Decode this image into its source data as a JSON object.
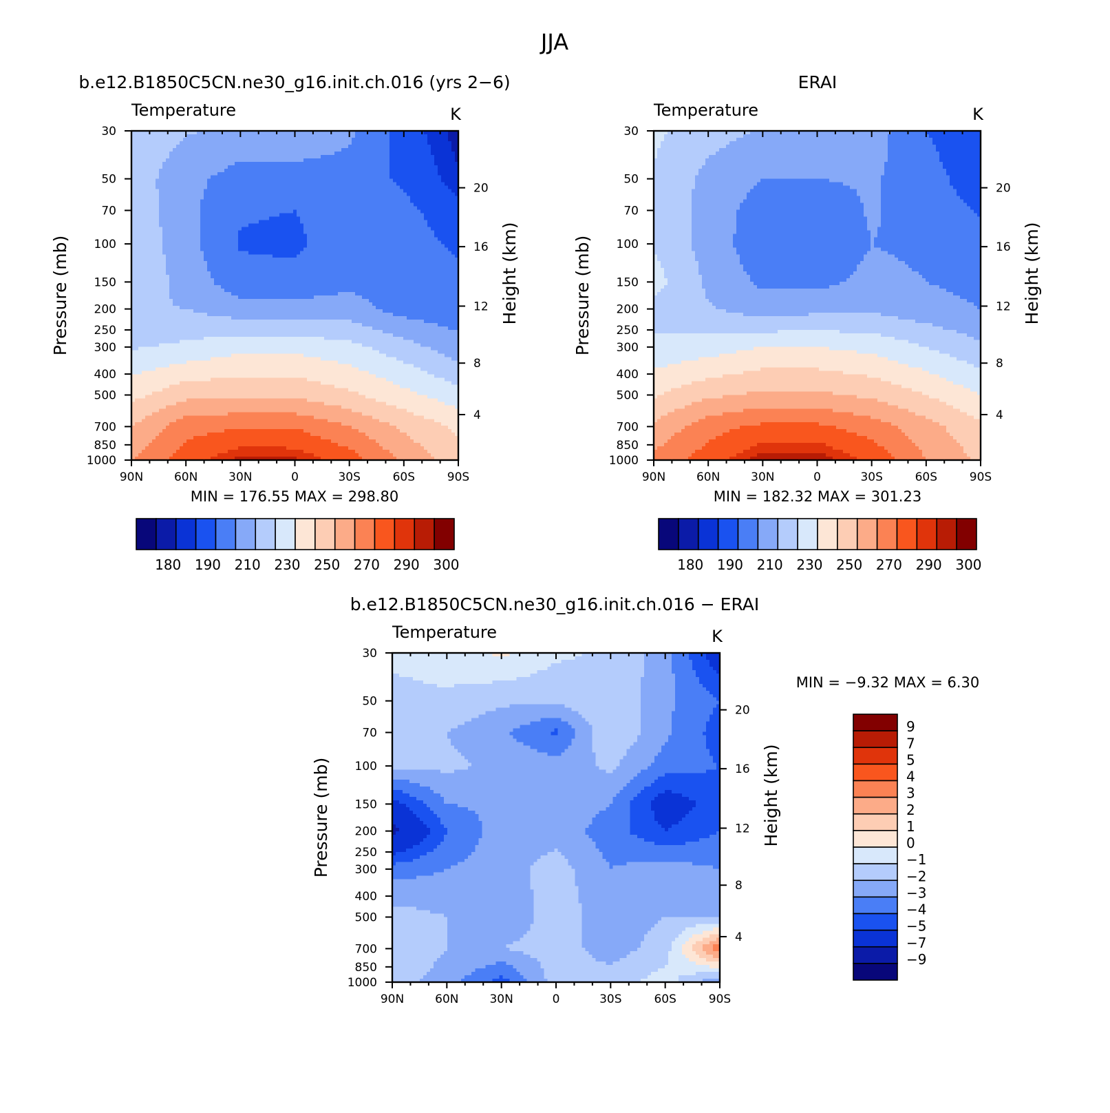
{
  "figure": {
    "title": "JJA"
  },
  "palettes": {
    "abs_colors": [
      "#08077a",
      "#0b1ba8",
      "#0a33d6",
      "#1a52f0",
      "#4a7ef6",
      "#86a9f8",
      "#b4ccfc",
      "#d8e8fb",
      "#fde6d6",
      "#fdcdb4",
      "#fcab88",
      "#fb8254",
      "#f9561e",
      "#e0340b",
      "#b81c05",
      "#820000"
    ],
    "diff_colors": [
      "#08077a",
      "#0b1ba8",
      "#0a33d6",
      "#1a52f0",
      "#4a7ef6",
      "#86a9f8",
      "#b4ccfc",
      "#d8e8fb",
      "#fde6d6",
      "#fdcdb4",
      "#fcab88",
      "#fb8254",
      "#f9561e",
      "#e0340b",
      "#b81c05",
      "#820000"
    ]
  },
  "panels": [
    {
      "key": "model",
      "title": "b.e12.B1850C5CN.ne30_g16.init.ch.016 (yrs 2−6)",
      "var_label": "Temperature",
      "units": "K",
      "ylabel": "Pressure (mb)",
      "ylabel_right": "Height (km)",
      "minmax": "MIN =  176.55   MAX =  298.80",
      "colorbar_labels": [
        "180",
        "190",
        "210",
        "230",
        "250",
        "270",
        "290",
        "300"
      ]
    },
    {
      "key": "obs",
      "title": "ERAI",
      "var_label": "Temperature",
      "units": "K",
      "ylabel": "Pressure (mb)",
      "ylabel_right": "Height (km)",
      "minmax": "MIN =  182.32   MAX =  301.23",
      "colorbar_labels": [
        "180",
        "190",
        "210",
        "230",
        "250",
        "270",
        "290",
        "300"
      ]
    },
    {
      "key": "diff",
      "title": "b.e12.B1850C5CN.ne30_g16.init.ch.016 − ERAI",
      "var_label": "Temperature",
      "units": "K",
      "ylabel": "Pressure (mb)",
      "ylabel_right": "Height (km)",
      "minmax": "MIN =   −9.32   MAX =    6.30",
      "colorbar_labels": [
        "9",
        "7",
        "5",
        "4",
        "3",
        "2",
        "1",
        "0",
        "−1",
        "−2",
        "−3",
        "−4",
        "−5",
        "−7",
        "−9"
      ]
    }
  ],
  "chart_data": [
    {
      "type": "heatmap",
      "title": "b.e12.B1850C5CN.ne30_g16.init.ch.016 (yrs 2−6)",
      "subtitle": "Temperature",
      "units": "K",
      "xlabel": "",
      "ylabel": "Pressure (mb)",
      "ylabel_right": "Height (km)",
      "x_ticks": [
        "90N",
        "60N",
        "30N",
        "0",
        "30S",
        "60S",
        "90S"
      ],
      "y_ticks": [
        30,
        50,
        70,
        100,
        150,
        200,
        250,
        300,
        400,
        500,
        700,
        850,
        1000
      ],
      "y_ticks_right": [
        4,
        8,
        12,
        16,
        20
      ],
      "ylim": [
        1000,
        30
      ],
      "y_scale": "log",
      "levels": [
        180,
        185,
        190,
        200,
        210,
        220,
        230,
        240,
        250,
        260,
        270,
        280,
        290,
        295,
        300
      ],
      "x": [
        -90,
        -60,
        -30,
        0,
        30,
        60,
        90
      ],
      "y": [
        30,
        50,
        70,
        100,
        150,
        200,
        300,
        500,
        700,
        1000
      ],
      "z": [
        [
          228,
          221,
          217,
          217,
          212,
          195,
          182
        ],
        [
          226,
          213,
          206,
          206,
          206,
          198,
          186
        ],
        [
          227,
          213,
          201,
          200,
          206,
          203,
          193
        ],
        [
          228,
          214,
          199,
          198,
          206,
          205,
          198
        ],
        [
          229,
          216,
          204,
          203,
          208,
          205,
          203
        ],
        [
          221,
          220,
          214,
          214,
          214,
          206,
          204
        ],
        [
          229,
          232,
          237,
          237,
          233,
          224,
          214
        ],
        [
          247,
          257,
          258,
          258,
          252,
          243,
          234
        ],
        [
          260,
          276,
          279,
          279,
          270,
          258,
          248
        ],
        [
          270,
          285,
          297,
          296,
          285,
          268,
          255
        ]
      ],
      "min": 176.55,
      "max": 298.8
    },
    {
      "type": "heatmap",
      "title": "ERAI",
      "subtitle": "Temperature",
      "units": "K",
      "xlabel": "",
      "ylabel": "Pressure (mb)",
      "ylabel_right": "Height (km)",
      "x_ticks": [
        "90N",
        "60N",
        "30N",
        "0",
        "30S",
        "60S",
        "90S"
      ],
      "y_ticks": [
        30,
        50,
        70,
        100,
        150,
        200,
        250,
        300,
        400,
        500,
        700,
        850,
        1000
      ],
      "y_ticks_right": [
        4,
        8,
        12,
        16,
        20
      ],
      "ylim": [
        1000,
        30
      ],
      "y_scale": "log",
      "levels": [
        180,
        185,
        190,
        200,
        210,
        220,
        230,
        240,
        250,
        260,
        270,
        280,
        290,
        295,
        300
      ],
      "x": [
        -90,
        -60,
        -30,
        0,
        30,
        60,
        90
      ],
      "y": [
        30,
        50,
        70,
        100,
        150,
        200,
        300,
        500,
        700,
        1000
      ],
      "z": [
        [
          232,
          224,
          219,
          219,
          215,
          200,
          190
        ],
        [
          229,
          217,
          210,
          210,
          211,
          205,
          193
        ],
        [
          228,
          216,
          205,
          204,
          211,
          206,
          199
        ],
        [
          229,
          216,
          203,
          201,
          210,
          208,
          203
        ],
        [
          234,
          218,
          208,
          207,
          213,
          210,
          207
        ],
        [
          227,
          221,
          215,
          217,
          218,
          214,
          210
        ],
        [
          232,
          235,
          240,
          240,
          237,
          230,
          222
        ],
        [
          249,
          258,
          262,
          262,
          258,
          250,
          240
        ],
        [
          262,
          276,
          282,
          282,
          275,
          264,
          252
        ],
        [
          273,
          285,
          299,
          299,
          288,
          270,
          258
        ]
      ],
      "min": 182.32,
      "max": 301.23
    },
    {
      "type": "heatmap",
      "title": "b.e12.B1850C5CN.ne30_g16.init.ch.016 − ERAI",
      "subtitle": "Temperature",
      "units": "K",
      "xlabel": "",
      "ylabel": "Pressure (mb)",
      "ylabel_right": "Height (km)",
      "x_ticks": [
        "90N",
        "60N",
        "30N",
        "0",
        "30S",
        "60S",
        "90S"
      ],
      "y_ticks": [
        30,
        50,
        70,
        100,
        150,
        200,
        250,
        300,
        400,
        500,
        700,
        850,
        1000
      ],
      "y_ticks_right": [
        4,
        8,
        12,
        16,
        20
      ],
      "ylim": [
        1000,
        30
      ],
      "y_scale": "log",
      "levels": [
        -9,
        -7,
        -5,
        -4,
        -3,
        -2,
        -1,
        0,
        1,
        2,
        3,
        4,
        5,
        7,
        9
      ],
      "x": [
        -90,
        -60,
        -30,
        0,
        30,
        60,
        90
      ],
      "y": [
        30,
        50,
        70,
        100,
        150,
        200,
        300,
        500,
        700,
        1000
      ],
      "z": [
        [
          -0.8,
          -0.5,
          0.2,
          -0.8,
          -1.2,
          -2.5,
          -6.0
        ],
        [
          -1.3,
          -1.2,
          -1.8,
          -1.8,
          -1.0,
          -2.8,
          -4.0
        ],
        [
          -1.5,
          -2.0,
          -2.8,
          -4.2,
          -1.0,
          -2.8,
          -4.5
        ],
        [
          -1.8,
          -1.8,
          -2.2,
          -2.5,
          -1.8,
          -3.5,
          -4.0
        ],
        [
          -5.5,
          -3.0,
          -2.8,
          -2.2,
          -3.0,
          -5.8,
          -4.5
        ],
        [
          -7.5,
          -4.0,
          -2.5,
          -2.5,
          -3.5,
          -5.0,
          -4.0
        ],
        [
          -3.5,
          -3.0,
          -2.5,
          -1.5,
          -3.0,
          -2.5,
          -3.0
        ],
        [
          -1.5,
          -2.0,
          -2.8,
          -1.5,
          -2.5,
          -2.0,
          -2.0
        ],
        [
          -1.0,
          -2.0,
          -2.0,
          -1.5,
          -2.5,
          -1.5,
          4.0
        ],
        [
          -1.5,
          -2.5,
          -4.5,
          -1.5,
          -1.5,
          -0.5,
          -3.0
        ]
      ],
      "min": -9.32,
      "max": 6.3
    }
  ]
}
